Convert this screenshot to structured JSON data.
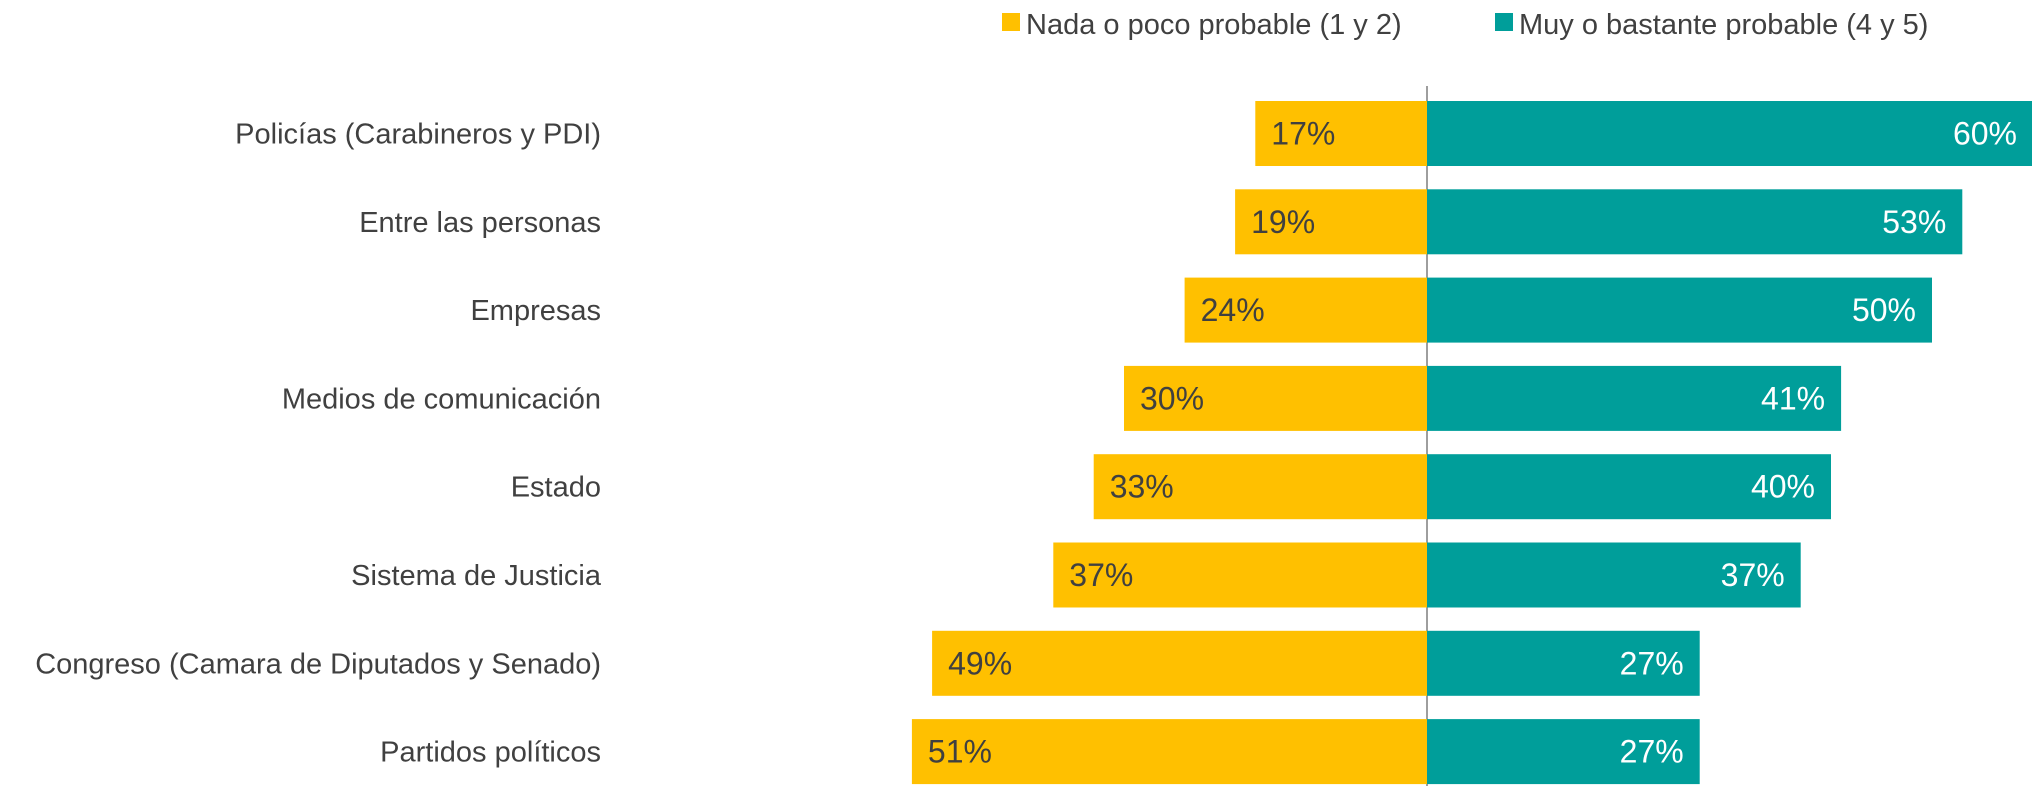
{
  "chart_data": {
    "type": "bar",
    "orientation": "horizontal-diverging",
    "categories": [
      "Policías (Carabineros y PDI)",
      "Entre las personas",
      "Empresas",
      "Medios de comunicación",
      "Estado",
      "Sistema de Justicia",
      "Congreso (Camara de Diputados y Senado)",
      "Partidos políticos"
    ],
    "series": [
      {
        "name": "Nada o poco probable (1 y 2)",
        "color": "#FFC000",
        "direction": "left",
        "values": [
          17,
          19,
          24,
          30,
          33,
          37,
          49,
          51
        ],
        "labels": [
          "17%",
          "19%",
          "24%",
          "30%",
          "33%",
          "37%",
          "49%",
          "51%"
        ]
      },
      {
        "name": "Muy o bastante probable (4 y 5)",
        "color": "#009E9A",
        "direction": "right",
        "values": [
          60,
          53,
          50,
          41,
          40,
          37,
          27,
          27
        ],
        "labels": [
          "60%",
          "53%",
          "50%",
          "41%",
          "40%",
          "37%",
          "27%",
          "27%"
        ]
      }
    ],
    "value_unit": "%",
    "legend_position": "top",
    "grid": false,
    "center_line": true
  }
}
